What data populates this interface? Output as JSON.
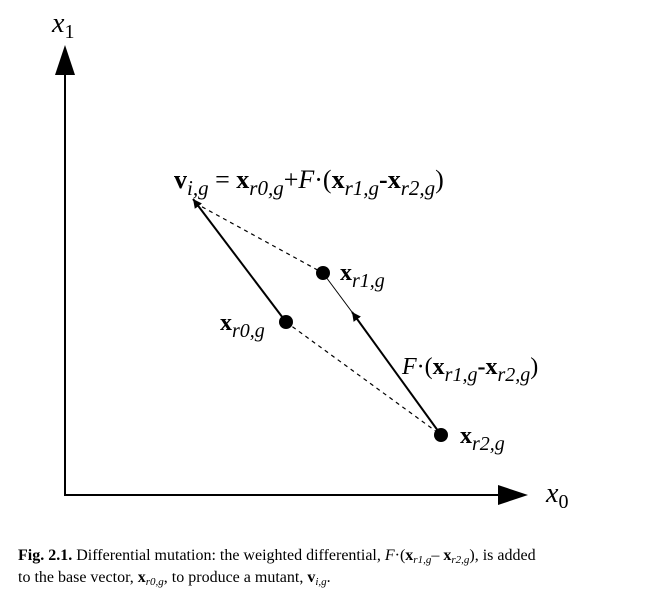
{
  "axes": {
    "y_label": [
      "x",
      "1"
    ],
    "x_label": [
      "x",
      "0"
    ]
  },
  "points": [
    {
      "label": [
        "x",
        "r0,g"
      ]
    },
    {
      "label": [
        "x",
        "r1,g"
      ]
    },
    {
      "label": [
        "x",
        "r2,g"
      ]
    }
  ],
  "mutant_label": [
    "v",
    "i,g",
    " = ",
    "x",
    "r0,g",
    "+",
    "F",
    "·(",
    "x",
    "r1,g",
    "-",
    "x",
    "r2,g",
    ")"
  ],
  "differential_label": [
    "F",
    "·(",
    "x",
    "r1,g",
    "-",
    "x",
    "r2,g",
    ")"
  ],
  "caption": {
    "line1": [
      "Fig. 2.1.",
      " Differential mutation: the weighted differential, ",
      "F",
      "·(",
      "x",
      "r1,g",
      "– ",
      "x",
      "r2,g",
      "), is added"
    ],
    "line2": [
      "to the base vector, ",
      "x",
      "r0,g",
      ", to produce a mutant, ",
      "v",
      "i,g",
      "."
    ]
  }
}
